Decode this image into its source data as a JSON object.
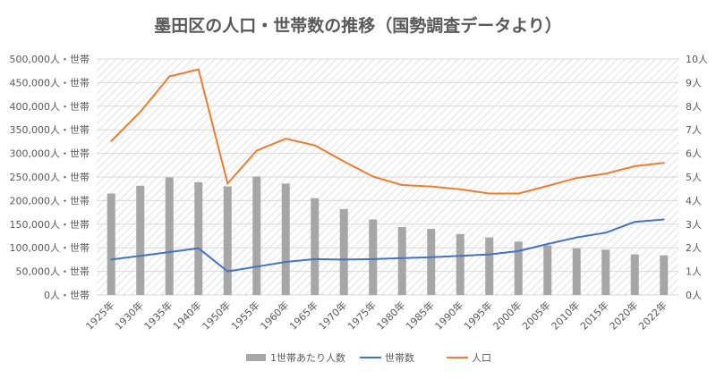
{
  "chart_data": {
    "type": "bar+line",
    "title": "墨田区の人口・世帯数の推移（国勢調査データより）",
    "categories": [
      "1925年",
      "1930年",
      "1935年",
      "1940年",
      "1950年",
      "1955年",
      "1960年",
      "1965年",
      "1970年",
      "1975年",
      "1980年",
      "1985年",
      "1990年",
      "1995年",
      "2000年",
      "2005年",
      "2010年",
      "2015年",
      "2020年",
      "2022年"
    ],
    "left_axis": {
      "ylim": [
        0,
        500000
      ],
      "ticks": [
        "0人・世帯",
        "50,000人・世帯",
        "100,000人・世帯",
        "150,000人・世帯",
        "200,000人・世帯",
        "250,000人・世帯",
        "300,000人・世帯",
        "350,000人・世帯",
        "400,000人・世帯",
        "450,000人・世帯",
        "500,000人・世帯"
      ]
    },
    "right_axis": {
      "ylim": [
        0,
        10
      ],
      "ticks": [
        "0人",
        "1人",
        "2人",
        "3人",
        "4人",
        "5人",
        "6人",
        "7人",
        "8人",
        "9人",
        "10人"
      ]
    },
    "series": [
      {
        "name": "1世帯あたり人数",
        "kind": "bar",
        "axis": "right",
        "color": "#a6a6a6",
        "values": [
          4.3,
          4.63,
          4.98,
          4.78,
          4.6,
          5.02,
          4.72,
          4.1,
          3.64,
          3.2,
          2.88,
          2.8,
          2.58,
          2.44,
          2.26,
          2.1,
          1.98,
          1.92,
          1.72,
          1.68
        ]
      },
      {
        "name": "世帯数",
        "kind": "line",
        "axis": "left",
        "color": "#4472c4",
        "values": [
          75000,
          83000,
          91000,
          99000,
          50000,
          60000,
          70000,
          76000,
          75000,
          76000,
          78000,
          80000,
          83000,
          86000,
          93000,
          108000,
          122000,
          132000,
          155000,
          160000
        ]
      },
      {
        "name": "人口",
        "kind": "line",
        "axis": "left",
        "color": "#ed7d31",
        "values": [
          326000,
          388000,
          463000,
          478000,
          236000,
          306000,
          331000,
          317000,
          283000,
          251000,
          233000,
          230000,
          224000,
          215000,
          215000,
          231000,
          248000,
          257000,
          273000,
          280000
        ]
      }
    ],
    "legend_position": "bottom",
    "grid": true
  }
}
